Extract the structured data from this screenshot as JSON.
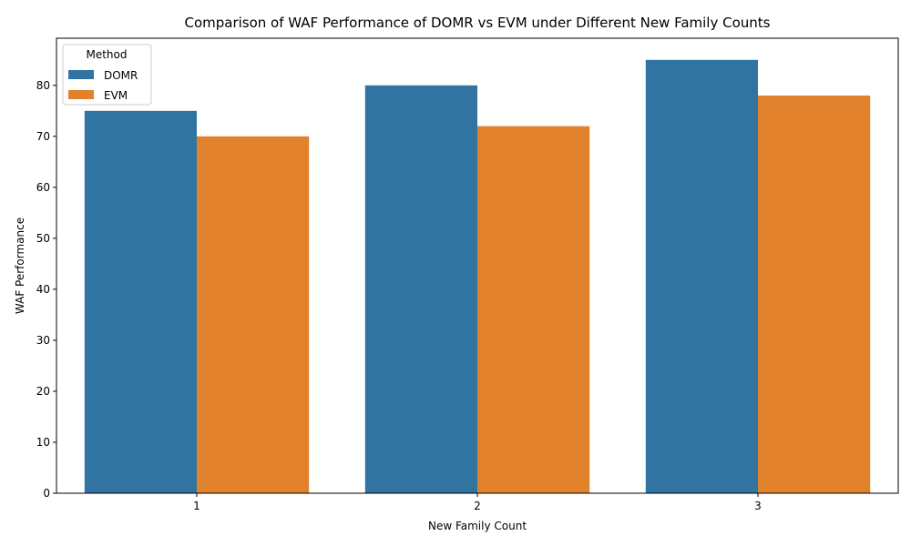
{
  "chart_data": {
    "type": "bar",
    "title": "Comparison of WAF Performance of DOMR vs EVM under Different New Family Counts",
    "xlabel": "New Family Count",
    "ylabel": "WAF Performance",
    "categories": [
      "1",
      "2",
      "3"
    ],
    "series": [
      {
        "name": "DOMR",
        "values": [
          75,
          80,
          85
        ],
        "color": "#3274a1"
      },
      {
        "name": "EVM",
        "values": [
          70,
          72,
          78
        ],
        "color": "#e1812c"
      }
    ],
    "ylim": [
      0,
      89.25
    ],
    "yticks": [
      0,
      10,
      20,
      30,
      40,
      50,
      60,
      70,
      80
    ],
    "grid": false,
    "legend": {
      "title": "Method",
      "placement": "top-left"
    }
  }
}
